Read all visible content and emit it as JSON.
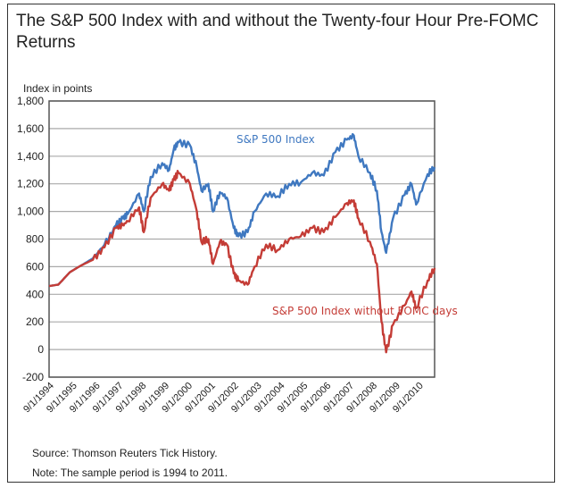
{
  "chart_data": {
    "type": "line",
    "title": "The S&P 500 Index with and without the Twenty-four Hour Pre-FOMC Returns",
    "ylabel": "Index in points",
    "xlabel": "",
    "ylim": [
      -200,
      1800
    ],
    "xlim": [
      1994.6,
      2011.3
    ],
    "yticks": [
      -200,
      0,
      200,
      400,
      600,
      800,
      1000,
      1200,
      1400,
      1600,
      1800
    ],
    "ytick_labels": [
      "-200",
      "0",
      "200",
      "400",
      "600",
      "800",
      "1,000",
      "1,200",
      "1,400",
      "1,600",
      "1,800"
    ],
    "xtick_labels": [
      "9/1/1994",
      "9/1/1995",
      "9/1/1996",
      "9/1/1997",
      "9/1/1998",
      "9/1/1999",
      "9/1/2000",
      "9/1/2001",
      "9/1/2002",
      "9/1/2003",
      "9/1/2004",
      "9/1/2005",
      "9/1/2006",
      "9/1/2007",
      "9/1/2008",
      "9/1/2009",
      "9/1/2010"
    ],
    "grid": true,
    "series": [
      {
        "name": "S&P 500 Index",
        "color": "#3f78c0",
        "x": [
          1994.6,
          1995.0,
          1995.5,
          1996.0,
          1996.5,
          1997.0,
          1997.5,
          1997.8,
          1998.0,
          1998.5,
          1998.7,
          1999.0,
          1999.5,
          1999.8,
          2000.0,
          2000.2,
          2000.7,
          2001.0,
          2001.2,
          2001.5,
          2001.7,
          2002.0,
          2002.3,
          2002.6,
          2002.8,
          2003.2,
          2003.5,
          2004.0,
          2004.5,
          2005.0,
          2005.5,
          2006.0,
          2006.5,
          2007.0,
          2007.5,
          2007.8,
          2008.0,
          2008.5,
          2008.8,
          2009.0,
          2009.2,
          2009.5,
          2010.0,
          2010.3,
          2010.5,
          2011.0,
          2011.3
        ],
        "values": [
          460,
          470,
          560,
          610,
          660,
          760,
          900,
          950,
          980,
          1130,
          1000,
          1250,
          1350,
          1300,
          1450,
          1500,
          1480,
          1320,
          1150,
          1200,
          1000,
          1140,
          1100,
          880,
          820,
          850,
          1000,
          1130,
          1110,
          1200,
          1210,
          1280,
          1260,
          1430,
          1520,
          1550,
          1400,
          1280,
          1150,
          850,
          700,
          950,
          1120,
          1200,
          1050,
          1270,
          1320
        ]
      },
      {
        "name": "S&P 500 Index without FOMC days",
        "color": "#c43c36",
        "x": [
          1994.6,
          1995.0,
          1995.5,
          1996.0,
          1996.5,
          1997.0,
          1997.5,
          1997.8,
          1998.0,
          1998.5,
          1998.7,
          1999.0,
          1999.5,
          1999.8,
          2000.0,
          2000.2,
          2000.7,
          2001.0,
          2001.2,
          2001.5,
          2001.7,
          2002.0,
          2002.3,
          2002.6,
          2002.8,
          2003.2,
          2003.5,
          2004.0,
          2004.5,
          2005.0,
          2005.5,
          2006.0,
          2006.5,
          2007.0,
          2007.5,
          2007.8,
          2008.0,
          2008.5,
          2008.8,
          2009.0,
          2009.2,
          2009.5,
          2010.0,
          2010.3,
          2010.5,
          2011.0,
          2011.3
        ],
        "values": [
          460,
          470,
          560,
          610,
          650,
          740,
          880,
          900,
          930,
          1030,
          850,
          1100,
          1200,
          1150,
          1230,
          1280,
          1200,
          1000,
          780,
          800,
          620,
          780,
          760,
          550,
          500,
          470,
          600,
          760,
          720,
          800,
          820,
          880,
          850,
          960,
          1060,
          1080,
          950,
          780,
          620,
          200,
          -20,
          180,
          320,
          420,
          300,
          500,
          590
        ]
      }
    ],
    "annotations": [
      "S&P 500 Index",
      "S&P 500 Index without FOMC days"
    ],
    "notes": [
      "Source: Thomson Reuters Tick History.",
      "Note: The sample period is 1994 to 2011."
    ]
  }
}
